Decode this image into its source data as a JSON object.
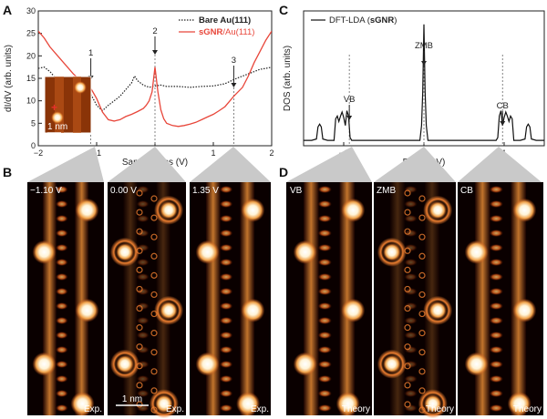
{
  "figure": {
    "panels": {
      "a": {
        "letter": "A",
        "ylabel": "dI/dV (arb. units)",
        "xlabel": "Sample Bias (V)",
        "legend": [
          {
            "label_bold": "Bare Au(111)",
            "label_rest": "",
            "color": "#222222",
            "style": "dotted"
          },
          {
            "label_bold": "sGNR",
            "label_rest": "/Au(111)",
            "color": "#e8463a",
            "style": "solid"
          }
        ],
        "annotations": [
          {
            "text": "1",
            "x": -1.1
          },
          {
            "text": "2",
            "x": 0.0
          },
          {
            "text": "3",
            "x": 1.35
          }
        ],
        "inset_scale": "1 nm"
      },
      "b": {
        "letter": "B",
        "images": [
          {
            "label": "−1.10 V",
            "corner": "Exp."
          },
          {
            "label": "0.00 V",
            "corner": "Exp."
          },
          {
            "label": "1.35 V",
            "corner": "Exp."
          }
        ],
        "scale_bar": "1 nm"
      },
      "c": {
        "letter": "C",
        "ylabel": "DOS (arb. units)",
        "xlabel": "E–EF (eV)",
        "legend": [
          {
            "label_prefix": "DFT-LDA (",
            "label_bold": "sGNR",
            "label_suffix": ")"
          }
        ],
        "annotations": [
          {
            "text": "VB",
            "x": -0.93
          },
          {
            "text": "ZMB",
            "x": 0.0
          },
          {
            "text": "CB",
            "x": 0.98
          }
        ]
      },
      "d": {
        "letter": "D",
        "images": [
          {
            "label": "VB",
            "corner": "Theory"
          },
          {
            "label": "ZMB",
            "corner": "Theory"
          },
          {
            "label": "CB",
            "corner": "Theory"
          }
        ]
      }
    }
  },
  "chart_data": [
    {
      "type": "line",
      "title": "",
      "xlabel": "Sample Bias (V)",
      "ylabel": "dI/dV (arb. units)",
      "xlim": [
        -2,
        2
      ],
      "ylim": [
        0,
        30
      ],
      "xticks": [
        -2,
        -1,
        0,
        1,
        2
      ],
      "yticks": [
        0,
        5,
        10,
        15,
        20,
        25,
        30
      ],
      "legend_position": "top-right",
      "series": [
        {
          "name": "Bare Au(111)",
          "color": "#222222",
          "x": [
            -2.0,
            -1.9,
            -1.8,
            -1.7,
            -1.6,
            -1.5,
            -1.4,
            -1.3,
            -1.2,
            -1.1,
            -1.0,
            -0.9,
            -0.8,
            -0.7,
            -0.6,
            -0.5,
            -0.4,
            -0.35,
            -0.3,
            -0.2,
            -0.1,
            0.0,
            0.1,
            0.2,
            0.4,
            0.6,
            0.8,
            1.0,
            1.2,
            1.4,
            1.6,
            1.8,
            1.9,
            2.0
          ],
          "y": [
            17.2,
            17.5,
            16.5,
            15.0,
            14.0,
            13.5,
            13.2,
            13.3,
            13.0,
            11.5,
            9.0,
            7.8,
            9.0,
            10.0,
            11.0,
            12.5,
            14.0,
            15.5,
            14.5,
            13.5,
            13.0,
            13.3,
            13.5,
            13.2,
            13.2,
            13.0,
            13.2,
            13.3,
            13.8,
            15.0,
            16.0,
            17.0,
            17.2,
            17.5
          ]
        },
        {
          "name": "sGNR/Au(111)",
          "color": "#e8463a",
          "x": [
            -2.0,
            -1.9,
            -1.8,
            -1.7,
            -1.6,
            -1.5,
            -1.4,
            -1.3,
            -1.2,
            -1.1,
            -1.0,
            -0.9,
            -0.8,
            -0.7,
            -0.6,
            -0.5,
            -0.4,
            -0.3,
            -0.2,
            -0.15,
            -0.1,
            -0.05,
            0.0,
            0.05,
            0.1,
            0.15,
            0.2,
            0.3,
            0.4,
            0.5,
            0.6,
            0.7,
            0.8,
            0.9,
            1.0,
            1.1,
            1.2,
            1.35,
            1.5,
            1.6,
            1.7,
            1.8,
            1.9,
            2.0
          ],
          "y": [
            25.5,
            24.0,
            22.0,
            20.5,
            19.0,
            17.5,
            16.0,
            14.8,
            13.8,
            12.8,
            10.5,
            7.5,
            5.8,
            5.5,
            5.8,
            6.5,
            7.0,
            7.6,
            8.3,
            9.0,
            10.0,
            12.0,
            17.5,
            12.0,
            8.0,
            6.0,
            5.0,
            4.5,
            4.3,
            4.5,
            4.8,
            5.2,
            5.8,
            6.4,
            7.0,
            7.8,
            8.7,
            11.0,
            13.0,
            15.5,
            18.5,
            21.0,
            23.5,
            25.5
          ]
        }
      ]
    },
    {
      "type": "line",
      "title": "",
      "xlabel": "E–EF (eV)",
      "ylabel": "DOS (arb. units)",
      "xlim": [
        -1.5,
        1.5
      ],
      "ylim": [
        0,
        1
      ],
      "xticks": [
        -1,
        0,
        1
      ],
      "legend_position": "top-left",
      "series": [
        {
          "name": "DFT-LDA (sGNR)",
          "color": "#111111",
          "x": [
            -1.5,
            -1.4,
            -1.34,
            -1.32,
            -1.3,
            -1.28,
            -1.26,
            -1.2,
            -1.12,
            -1.1,
            -1.08,
            -1.06,
            -1.04,
            -1.02,
            -1.0,
            -0.98,
            -0.96,
            -0.94,
            -0.92,
            -0.9,
            -0.85,
            -0.5,
            -0.05,
            -0.03,
            -0.015,
            0.0,
            0.015,
            0.03,
            0.05,
            0.5,
            0.85,
            0.9,
            0.92,
            0.94,
            0.96,
            0.98,
            1.0,
            1.02,
            1.04,
            1.06,
            1.08,
            1.1,
            1.12,
            1.2,
            1.26,
            1.28,
            1.3,
            1.32,
            1.34,
            1.4,
            1.5
          ],
          "y": [
            0.04,
            0.04,
            0.05,
            0.14,
            0.16,
            0.14,
            0.05,
            0.04,
            0.04,
            0.2,
            0.22,
            0.18,
            0.22,
            0.25,
            0.21,
            0.15,
            0.26,
            0.22,
            0.06,
            0.04,
            0.04,
            0.04,
            0.04,
            0.15,
            0.4,
            0.9,
            0.4,
            0.15,
            0.04,
            0.04,
            0.04,
            0.04,
            0.06,
            0.22,
            0.26,
            0.15,
            0.21,
            0.25,
            0.22,
            0.18,
            0.22,
            0.2,
            0.04,
            0.04,
            0.05,
            0.14,
            0.16,
            0.14,
            0.05,
            0.04,
            0.04
          ]
        }
      ]
    }
  ]
}
